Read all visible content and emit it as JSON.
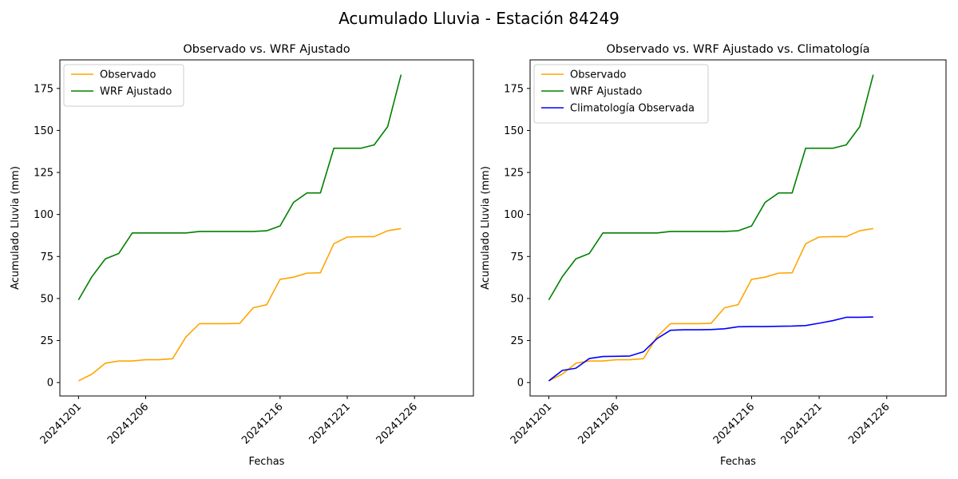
{
  "suptitle": "Acumulado Lluvia - Estación 84249",
  "chart_data": [
    {
      "type": "line",
      "title": "Observado vs. WRF Ajustado",
      "xlabel": "Fechas",
      "ylabel": "Acumulado Lluvia (mm)",
      "x": [
        "20241201",
        "20241202",
        "20241203",
        "20241204",
        "20241205",
        "20241206",
        "20241207",
        "20241208",
        "20241209",
        "20241210",
        "20241211",
        "20241212",
        "20241213",
        "20241214",
        "20241215",
        "20241216",
        "20241217",
        "20241218",
        "20241219",
        "20241220",
        "20241221",
        "20241222",
        "20241223",
        "20241224",
        "20241225"
      ],
      "xticks": [
        "20241201",
        "20241206",
        "20241216",
        "20241221",
        "20241226"
      ],
      "yticks": [
        0,
        25,
        50,
        75,
        100,
        125,
        150,
        175
      ],
      "ylim": [
        -8,
        192
      ],
      "grid": false,
      "legend": "upper-left",
      "series": [
        {
          "name": "Observado",
          "color": "#FFA500",
          "values": [
            1.0,
            5.0,
            11.5,
            12.8,
            12.8,
            13.6,
            13.6,
            14.2,
            27.2,
            35.0,
            35.0,
            35.0,
            35.2,
            44.5,
            46.3,
            61.4,
            62.7,
            65.1,
            65.3,
            82.6,
            86.6,
            86.8,
            86.8,
            90.3,
            91.6
          ]
        },
        {
          "name": "WRF Ajustado",
          "color": "#008000",
          "values": [
            49.2,
            63.0,
            73.6,
            76.8,
            89.0,
            89.0,
            89.0,
            89.0,
            89.0,
            89.9,
            89.9,
            89.9,
            89.9,
            89.9,
            90.3,
            93.2,
            107.2,
            112.8,
            112.8,
            139.4,
            139.4,
            139.4,
            141.4,
            152.2,
            183.2
          ]
        }
      ]
    },
    {
      "type": "line",
      "title": "Observado vs. WRF Ajustado vs. Climatología",
      "xlabel": "Fechas",
      "ylabel": "Acumulado Lluvia (mm)",
      "x": [
        "20241201",
        "20241202",
        "20241203",
        "20241204",
        "20241205",
        "20241206",
        "20241207",
        "20241208",
        "20241209",
        "20241210",
        "20241211",
        "20241212",
        "20241213",
        "20241214",
        "20241215",
        "20241216",
        "20241217",
        "20241218",
        "20241219",
        "20241220",
        "20241221",
        "20241222",
        "20241223",
        "20241224",
        "20241225"
      ],
      "xticks": [
        "20241201",
        "20241206",
        "20241216",
        "20241221",
        "20241226"
      ],
      "yticks": [
        0,
        25,
        50,
        75,
        100,
        125,
        150,
        175
      ],
      "ylim": [
        -8,
        192
      ],
      "grid": false,
      "legend": "upper-left",
      "series": [
        {
          "name": "Observado",
          "color": "#FFA500",
          "values": [
            1.0,
            5.0,
            11.5,
            12.8,
            12.8,
            13.6,
            13.6,
            14.2,
            27.2,
            35.0,
            35.0,
            35.0,
            35.2,
            44.5,
            46.3,
            61.4,
            62.7,
            65.1,
            65.3,
            82.6,
            86.6,
            86.8,
            86.8,
            90.3,
            91.6
          ]
        },
        {
          "name": "WRF Ajustado",
          "color": "#008000",
          "values": [
            49.2,
            63.0,
            73.6,
            76.8,
            89.0,
            89.0,
            89.0,
            89.0,
            89.0,
            89.9,
            89.9,
            89.9,
            89.9,
            89.9,
            90.3,
            93.2,
            107.2,
            112.8,
            112.8,
            139.4,
            139.4,
            139.4,
            141.4,
            152.2,
            183.2
          ]
        },
        {
          "name": "Climatología Observada",
          "color": "#0000FF",
          "values": [
            1.0,
            7.2,
            8.5,
            14.3,
            15.5,
            15.6,
            15.8,
            18.3,
            26.1,
            31.1,
            31.4,
            31.4,
            31.5,
            32.0,
            33.2,
            33.3,
            33.3,
            33.5,
            33.6,
            33.9,
            35.3,
            36.8,
            38.8,
            38.8,
            39.0
          ]
        }
      ]
    }
  ]
}
